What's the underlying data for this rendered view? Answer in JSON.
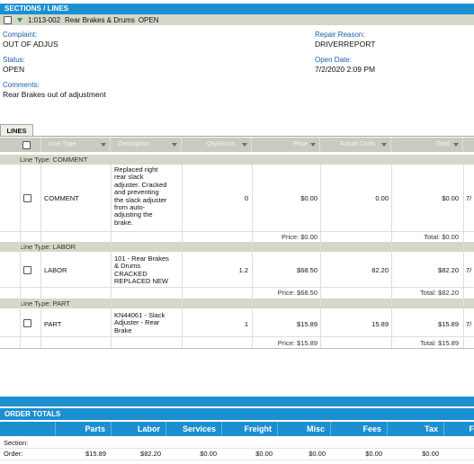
{
  "section_header": "SECTIONS / LINES",
  "section": {
    "code": "1:013-002",
    "title": "Rear Brakes & Drums",
    "status": "OPEN"
  },
  "complaint": {
    "label": "Complaint:",
    "value": "OUT OF ADJUS"
  },
  "repair_reason": {
    "label": "Repair Reason:",
    "value": "DRIVERREPORT"
  },
  "status": {
    "label": "Status:",
    "value": "OPEN"
  },
  "open_date": {
    "label": "Open Date:",
    "value": "7/2/2020 2:09 PM"
  },
  "comments": {
    "label": "Comments:",
    "value": "Rear Brakes out of adjustment"
  },
  "tab": "LINES",
  "columns": [
    "Line Type",
    "Description",
    "Qty/Hours",
    "Price",
    "Actual Costs",
    "Total"
  ],
  "groups": [
    {
      "header": "Line Type: COMMENT",
      "type": "COMMENT",
      "desc": [
        "Replaced right",
        "rear slack",
        "adjuster. Cracked",
        "and preventing",
        "the slack adjuster",
        "from auto-",
        "adjusting the",
        "brake."
      ],
      "qty": "0",
      "price": "$0.00",
      "actual": "0.00",
      "total": "$0.00",
      "extra": "7/",
      "sub_price": "Price: $0.00",
      "sub_total": "Total: $0.00"
    },
    {
      "header": "Line Type: LABOR",
      "type": "LABOR",
      "desc": [
        "101 - Rear Brakes",
        "& Drums",
        "CRACKED",
        "REPLACED NEW"
      ],
      "qty": "1.2",
      "price": "$68.50",
      "actual": "82.20",
      "total": "$82.20",
      "extra": "7/",
      "sub_price": "Price: $68.50",
      "sub_total": "Total: $82.20"
    },
    {
      "header": "Line Type: PART",
      "type": "PART",
      "desc": [
        "KN44061 - Slack",
        "Adjuster - Rear",
        "Brake"
      ],
      "qty": "1",
      "price": "$15.89",
      "actual": "15.89",
      "total": "$15.89",
      "extra": "7/",
      "sub_price": "Price: $15.89",
      "sub_total": "Total: $15.89"
    }
  ],
  "order_totals": {
    "header": "ORDER TOTALS",
    "columns": [
      "Parts",
      "Labor",
      "Services",
      "Freight",
      "Misc",
      "Fees",
      "Tax",
      "F"
    ],
    "rows": [
      {
        "label": "Section:",
        "values": [
          "",
          "",
          "",
          "",
          "",
          "",
          "",
          ""
        ]
      },
      {
        "label": "Order:",
        "values": [
          "$15.89",
          "$82.20",
          "$0.00",
          "$0.00",
          "$0.00",
          "$0.00",
          "$0.00",
          ""
        ]
      }
    ]
  },
  "colors": {
    "accent": "#1c8fd0",
    "group_bg": "#d4d8c8",
    "label": "#1a5fa8"
  }
}
